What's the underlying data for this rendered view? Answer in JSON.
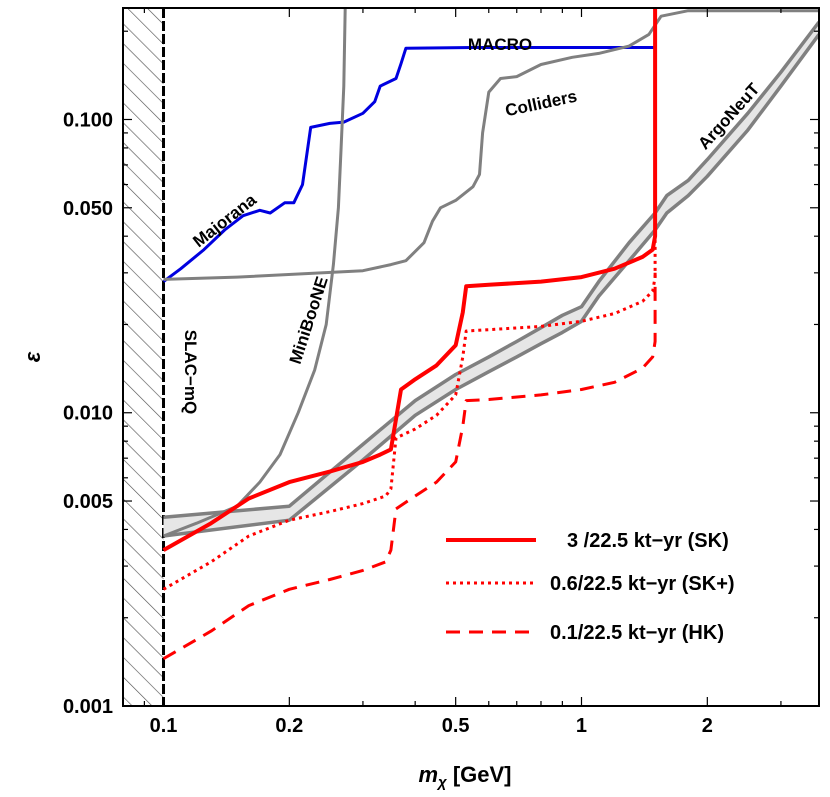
{
  "chart_data": {
    "type": "line",
    "xlabel_main": "m",
    "xlabel_sub": "χ",
    "xlabel_unit": "[GeV]",
    "ylabel": "ε",
    "xscale": "log",
    "yscale": "log",
    "xlim": [
      0.08,
      3.7
    ],
    "ylim": [
      0.001,
      0.24
    ],
    "x_ticks": [
      {
        "value": 0.1,
        "label": "0.1"
      },
      {
        "value": 0.2,
        "label": "0.2"
      },
      {
        "value": 0.5,
        "label": "0.5"
      },
      {
        "value": 1,
        "label": "1"
      },
      {
        "value": 2,
        "label": "2"
      }
    ],
    "y_ticks": [
      {
        "value": 0.001,
        "label": "0.001"
      },
      {
        "value": 0.005,
        "label": "0.005"
      },
      {
        "value": 0.01,
        "label": "0.010"
      },
      {
        "value": 0.05,
        "label": "0.050"
      },
      {
        "value": 0.1,
        "label": "0.100"
      }
    ],
    "excluded_region": {
      "name": "SLAC-mQ",
      "x_max": 0.1
    },
    "bounds": [
      {
        "name": "MACRO",
        "color": "#0000e0",
        "points": [
          [
            0.1,
            0.028
          ],
          [
            0.11,
            0.031
          ],
          [
            0.125,
            0.036
          ],
          [
            0.14,
            0.042
          ],
          [
            0.155,
            0.047
          ],
          [
            0.17,
            0.049
          ],
          [
            0.18,
            0.048
          ],
          [
            0.195,
            0.052
          ],
          [
            0.205,
            0.052
          ],
          [
            0.215,
            0.06
          ],
          [
            0.225,
            0.094
          ],
          [
            0.25,
            0.097
          ],
          [
            0.27,
            0.098
          ],
          [
            0.3,
            0.105
          ],
          [
            0.32,
            0.115
          ],
          [
            0.33,
            0.13
          ],
          [
            0.36,
            0.138
          ],
          [
            0.37,
            0.155
          ],
          [
            0.38,
            0.175
          ],
          [
            0.55,
            0.176
          ],
          [
            1.5,
            0.176
          ]
        ]
      },
      {
        "name": "Colliders",
        "color": "#808080",
        "points": [
          [
            0.1,
            0.0285
          ],
          [
            0.15,
            0.029
          ],
          [
            0.3,
            0.0305
          ],
          [
            0.35,
            0.032
          ],
          [
            0.38,
            0.033
          ],
          [
            0.42,
            0.038
          ],
          [
            0.44,
            0.045
          ],
          [
            0.46,
            0.05
          ],
          [
            0.5,
            0.053
          ],
          [
            0.55,
            0.059
          ],
          [
            0.57,
            0.065
          ],
          [
            0.58,
            0.09
          ],
          [
            0.6,
            0.124
          ],
          [
            0.64,
            0.138
          ],
          [
            0.7,
            0.14
          ],
          [
            0.8,
            0.154
          ],
          [
            0.95,
            0.163
          ],
          [
            1.1,
            0.168
          ],
          [
            1.3,
            0.178
          ],
          [
            1.45,
            0.195
          ],
          [
            1.55,
            0.225
          ],
          [
            1.8,
            0.235
          ],
          [
            3.7,
            0.235
          ]
        ]
      },
      {
        "name": "MiniBooNE",
        "color": "#808080",
        "points": [
          [
            0.1,
            0.0038
          ],
          [
            0.12,
            0.0042
          ],
          [
            0.15,
            0.0048
          ],
          [
            0.17,
            0.0058
          ],
          [
            0.19,
            0.0072
          ],
          [
            0.21,
            0.01
          ],
          [
            0.23,
            0.014
          ],
          [
            0.245,
            0.02
          ],
          [
            0.255,
            0.032
          ],
          [
            0.262,
            0.05
          ],
          [
            0.266,
            0.08
          ],
          [
            0.27,
            0.13
          ],
          [
            0.272,
            0.24
          ]
        ]
      },
      {
        "name": "ArgoNeuT",
        "color": "#808080",
        "fill": "#e6e6e6",
        "upper": [
          [
            0.1,
            0.0044
          ],
          [
            0.2,
            0.0048
          ],
          [
            0.3,
            0.0078
          ],
          [
            0.4,
            0.011
          ],
          [
            0.5,
            0.0135
          ],
          [
            0.6,
            0.0155
          ],
          [
            0.7,
            0.0175
          ],
          [
            0.8,
            0.0195
          ],
          [
            0.9,
            0.0215
          ],
          [
            1.0,
            0.023
          ],
          [
            1.1,
            0.028
          ],
          [
            1.3,
            0.038
          ],
          [
            1.5,
            0.048
          ],
          [
            1.6,
            0.055
          ],
          [
            1.8,
            0.062
          ],
          [
            2.0,
            0.073
          ],
          [
            2.5,
            0.105
          ],
          [
            3.0,
            0.145
          ],
          [
            3.7,
            0.215
          ]
        ],
        "lower": [
          [
            0.1,
            0.0038
          ],
          [
            0.2,
            0.0043
          ],
          [
            0.3,
            0.0069
          ],
          [
            0.4,
            0.0098
          ],
          [
            0.5,
            0.012
          ],
          [
            0.6,
            0.0138
          ],
          [
            0.7,
            0.0155
          ],
          [
            0.8,
            0.0172
          ],
          [
            0.9,
            0.0188
          ],
          [
            1.0,
            0.0205
          ],
          [
            1.1,
            0.025
          ],
          [
            1.3,
            0.033
          ],
          [
            1.5,
            0.042
          ],
          [
            1.6,
            0.048
          ],
          [
            1.8,
            0.055
          ],
          [
            2.0,
            0.064
          ],
          [
            2.5,
            0.092
          ],
          [
            3.0,
            0.13
          ],
          [
            3.7,
            0.195
          ]
        ]
      }
    ],
    "series": [
      {
        "name": "3 /22.5 kt−yr (SK)",
        "color": "#ff0000",
        "dash": "solid",
        "points": [
          [
            0.1,
            0.0034
          ],
          [
            0.13,
            0.0042
          ],
          [
            0.16,
            0.0051
          ],
          [
            0.2,
            0.0058
          ],
          [
            0.25,
            0.0063
          ],
          [
            0.3,
            0.0068
          ],
          [
            0.33,
            0.0072
          ],
          [
            0.35,
            0.0075
          ],
          [
            0.37,
            0.012
          ],
          [
            0.4,
            0.013
          ],
          [
            0.45,
            0.0145
          ],
          [
            0.5,
            0.017
          ],
          [
            0.52,
            0.022
          ],
          [
            0.53,
            0.027
          ],
          [
            0.6,
            0.0273
          ],
          [
            0.8,
            0.028
          ],
          [
            1.0,
            0.029
          ],
          [
            1.2,
            0.031
          ],
          [
            1.4,
            0.034
          ],
          [
            1.48,
            0.036
          ],
          [
            1.5,
            0.04
          ],
          [
            1.5,
            0.24
          ]
        ]
      },
      {
        "name": "0.6/22.5 kt−yr (SK+)",
        "color": "#ff0000",
        "dash": "dotted",
        "points": [
          [
            0.1,
            0.0025
          ],
          [
            0.13,
            0.0031
          ],
          [
            0.16,
            0.0038
          ],
          [
            0.2,
            0.0043
          ],
          [
            0.25,
            0.0046
          ],
          [
            0.3,
            0.0049
          ],
          [
            0.34,
            0.0052
          ],
          [
            0.35,
            0.0055
          ],
          [
            0.36,
            0.0082
          ],
          [
            0.4,
            0.0088
          ],
          [
            0.45,
            0.0098
          ],
          [
            0.5,
            0.0115
          ],
          [
            0.52,
            0.0155
          ],
          [
            0.53,
            0.019
          ],
          [
            0.6,
            0.0192
          ],
          [
            0.8,
            0.0197
          ],
          [
            1.0,
            0.0205
          ],
          [
            1.2,
            0.0218
          ],
          [
            1.4,
            0.024
          ],
          [
            1.48,
            0.026
          ],
          [
            1.5,
            0.029
          ],
          [
            1.5,
            0.04
          ]
        ]
      },
      {
        "name": "0.1/22.5 kt−yr (HK)",
        "color": "#ff0000",
        "dash": "dashed",
        "points": [
          [
            0.1,
            0.00145
          ],
          [
            0.13,
            0.0018
          ],
          [
            0.16,
            0.0022
          ],
          [
            0.2,
            0.0025
          ],
          [
            0.25,
            0.0027
          ],
          [
            0.3,
            0.0029
          ],
          [
            0.34,
            0.0031
          ],
          [
            0.35,
            0.0034
          ],
          [
            0.36,
            0.0047
          ],
          [
            0.4,
            0.0052
          ],
          [
            0.45,
            0.0058
          ],
          [
            0.5,
            0.0068
          ],
          [
            0.52,
            0.009
          ],
          [
            0.53,
            0.011
          ],
          [
            0.6,
            0.0111
          ],
          [
            0.8,
            0.0115
          ],
          [
            1.0,
            0.012
          ],
          [
            1.2,
            0.0127
          ],
          [
            1.4,
            0.0142
          ],
          [
            1.48,
            0.0155
          ],
          [
            1.5,
            0.0175
          ],
          [
            1.5,
            0.03
          ]
        ]
      }
    ],
    "annotations": [
      {
        "text": "MACRO"
      },
      {
        "text": "Colliders"
      },
      {
        "text": "ArgoNeuT"
      },
      {
        "text": "Majorana"
      },
      {
        "text": "MiniBooNE"
      },
      {
        "text": "SLAC−mQ"
      }
    ],
    "legend_position": "bottom-right",
    "grid": false
  }
}
